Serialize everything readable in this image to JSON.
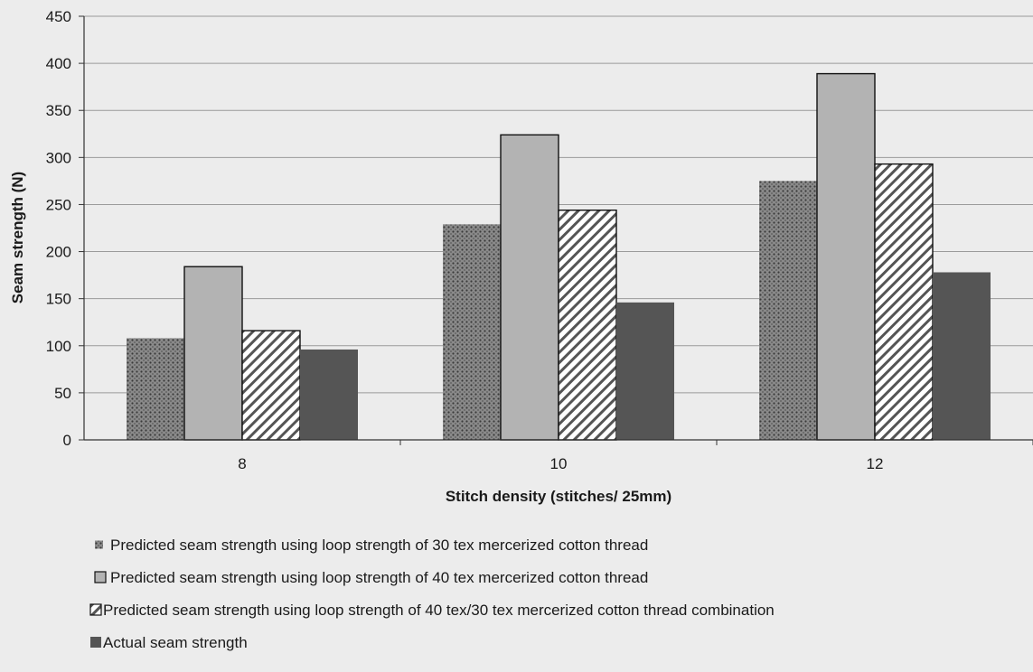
{
  "chart_data": {
    "type": "bar",
    "xlabel": "Stitch density (stitches/ 25mm)",
    "ylabel": "Seam strength (N)",
    "ylim": [
      0,
      450
    ],
    "yticks": [
      "0",
      "50",
      "100",
      "150",
      "200",
      "250",
      "300",
      "350",
      "400",
      "450"
    ],
    "grid": true,
    "legend_position": "bottom",
    "categories": [
      "8",
      "10",
      "12"
    ],
    "series": [
      {
        "name": "Predicted seam strength using loop strength of 30 tex mercerized cotton thread",
        "values": [
          108,
          229,
          275
        ],
        "fill": "dots",
        "color": "#6a6a6a"
      },
      {
        "name": "Predicted seam strength using loop strength of 40 tex mercerized cotton thread",
        "values": [
          184,
          324,
          389
        ],
        "fill": "solid",
        "color": "#b3b3b3"
      },
      {
        "name": "Predicted seam strength using loop strength of 40 tex/30 tex mercerized cotton thread combination",
        "values": [
          116,
          244,
          293
        ],
        "fill": "diagonal-hatch",
        "color": "#ffffff"
      },
      {
        "name": "Actual seam strength",
        "values": [
          96,
          146,
          178
        ],
        "fill": "solid",
        "color": "#555555"
      }
    ]
  }
}
